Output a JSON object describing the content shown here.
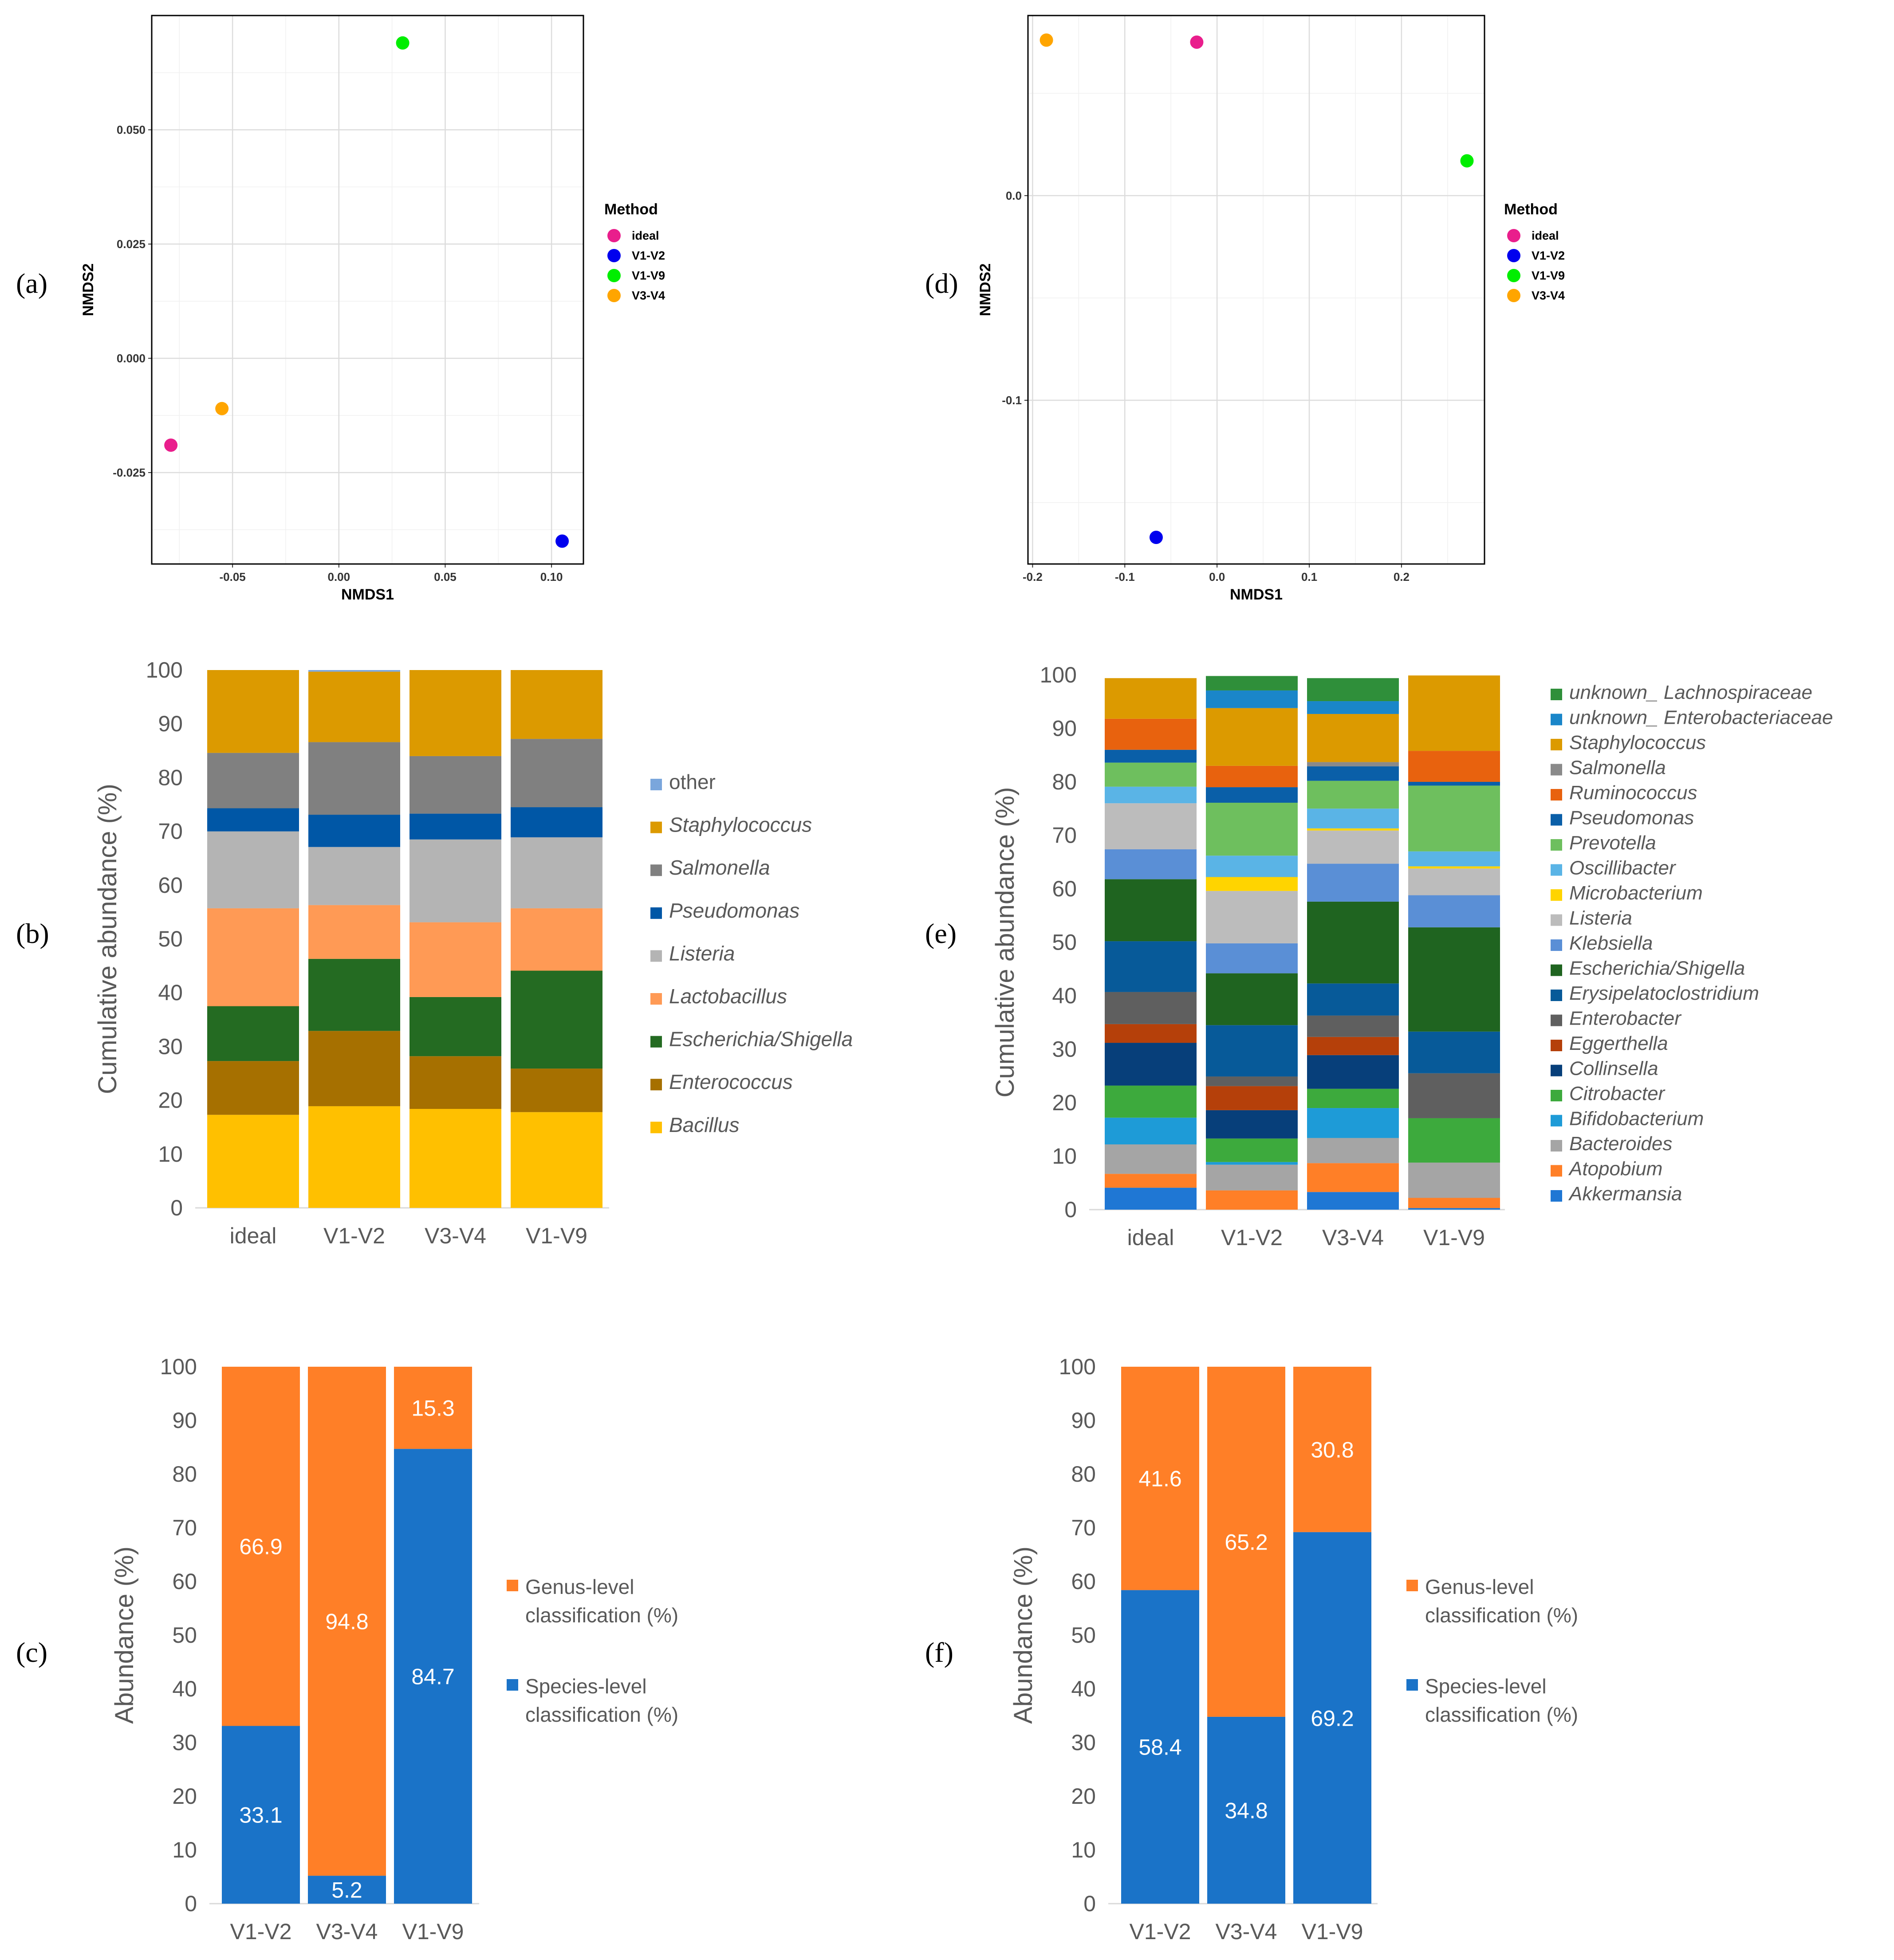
{
  "panel_labels": [
    "(a)",
    "(b)",
    "(c)",
    "(d)",
    "(e)",
    "(f)"
  ],
  "chart_data": [
    {
      "panel": "(a)",
      "type": "scatter",
      "xlabel": "NMDS1",
      "ylabel": "NMDS2",
      "xlim": [
        -0.088,
        0.115
      ],
      "ylim": [
        -0.045,
        0.075
      ],
      "xticks": [
        -0.05,
        0.0,
        0.05,
        0.1
      ],
      "xtick_labels": [
        "-0.05",
        "0.00",
        "0.05",
        "0.10"
      ],
      "yticks": [
        -0.025,
        0.0,
        0.025,
        0.05
      ],
      "ytick_labels": [
        "-0.025",
        "0.000",
        "0.025",
        "0.050"
      ],
      "legend_title": "Method",
      "legend": [
        "ideal",
        "V1-V2",
        "V1-V9",
        "V3-V4"
      ],
      "colors": [
        "#e91e8c",
        "#0000ee",
        "#00ee00",
        "#ffa500"
      ],
      "points": [
        {
          "label": "ideal",
          "x": -0.079,
          "y": -0.019
        },
        {
          "label": "V1-V2",
          "x": 0.105,
          "y": -0.04
        },
        {
          "label": "V1-V9",
          "x": 0.03,
          "y": 0.069
        },
        {
          "label": "V3-V4",
          "x": -0.055,
          "y": -0.011
        }
      ]
    },
    {
      "panel": "(d)",
      "type": "scatter",
      "xlabel": "NMDS1",
      "ylabel": "NMDS2",
      "xlim": [
        -0.205,
        0.29
      ],
      "ylim": [
        -0.18,
        0.088
      ],
      "xticks": [
        -0.2,
        -0.1,
        0.0,
        0.1,
        0.2
      ],
      "xtick_labels": [
        "-0.2",
        "-0.1",
        "0.0",
        "0.1",
        "0.2"
      ],
      "yticks": [
        -0.1,
        0.0
      ],
      "ytick_labels": [
        "-0.1",
        "0.0"
      ],
      "legend_title": "Method",
      "legend": [
        "ideal",
        "V1-V2",
        "V1-V9",
        "V3-V4"
      ],
      "colors": [
        "#e91e8c",
        "#0000ee",
        "#00ee00",
        "#ffa500"
      ],
      "points": [
        {
          "label": "ideal",
          "x": -0.022,
          "y": 0.075
        },
        {
          "label": "V1-V2",
          "x": -0.066,
          "y": -0.167
        },
        {
          "label": "V1-V9",
          "x": 0.271,
          "y": 0.017
        },
        {
          "label": "V3-V4",
          "x": -0.185,
          "y": 0.076
        }
      ]
    },
    {
      "panel": "(b)",
      "type": "bar",
      "stacked": true,
      "ylabel": "Cumulative abundance (%)",
      "ylim": [
        0,
        100
      ],
      "yticks": [
        "0",
        "10",
        "20",
        "30",
        "40",
        "50",
        "60",
        "70",
        "80",
        "90",
        "100"
      ],
      "categories": [
        "ideal",
        "V1-V2",
        "V3-V4",
        "V1-V9"
      ],
      "series": [
        {
          "name": "Bacillus",
          "color": "#ffc000",
          "values": [
            17.3,
            18.9,
            18.4,
            17.8
          ]
        },
        {
          "name": "Enterococcus",
          "color": "#a67000",
          "values": [
            10.0,
            14.0,
            9.8,
            8.1
          ]
        },
        {
          "name": "Escherichia/Shigella",
          "color": "#246b22",
          "values": [
            10.2,
            13.4,
            11.0,
            18.2
          ]
        },
        {
          "name": "Lactobacillus",
          "color": "#ff9a55",
          "values": [
            18.2,
            10.0,
            13.9,
            11.6
          ]
        },
        {
          "name": "Listeria",
          "color": "#b4b4b4",
          "values": [
            14.3,
            10.8,
            15.4,
            13.2
          ]
        },
        {
          "name": "Pseudomonas",
          "color": "#0057a6",
          "values": [
            4.3,
            6.0,
            4.8,
            5.6
          ]
        },
        {
          "name": "Salmonella",
          "color": "#808080",
          "values": [
            10.3,
            13.5,
            10.7,
            12.7
          ]
        },
        {
          "name": "Staphylococcus",
          "color": "#dc9a00",
          "values": [
            15.4,
            13.1,
            16.0,
            12.8
          ]
        },
        {
          "name": "other",
          "color": "#7aa6dc",
          "values": [
            0.0,
            0.3,
            0.0,
            0.0
          ]
        }
      ],
      "legend_order": [
        "other",
        "Staphylococcus",
        "Salmonella",
        "Pseudomonas",
        "Listeria",
        "Lactobacillus",
        "Escherichia/Shigella",
        "Enterococcus",
        "Bacillus"
      ]
    },
    {
      "panel": "(e)",
      "type": "bar",
      "stacked": true,
      "ylabel": "Cumulative abundance (%)",
      "ylim": [
        0,
        100
      ],
      "yticks": [
        "0",
        "10",
        "20",
        "30",
        "40",
        "50",
        "60",
        "70",
        "80",
        "90",
        "100"
      ],
      "categories": [
        "ideal",
        "V1-V2",
        "V3-V4",
        "V1-V9"
      ],
      "series": [
        {
          "name": "Akkermansia",
          "color": "#1f77d4",
          "values": [
            4.1,
            0.0,
            3.3,
            0.3
          ]
        },
        {
          "name": "Atopobium",
          "color": "#ff7f27",
          "values": [
            2.6,
            3.6,
            5.4,
            1.9
          ]
        },
        {
          "name": "Bacteroides",
          "color": "#a5a5a5",
          "values": [
            5.5,
            4.8,
            4.7,
            6.6
          ]
        },
        {
          "name": "Bifidobacterium",
          "color": "#1e9bd7",
          "values": [
            5.0,
            0.5,
            5.6,
            0.0
          ]
        },
        {
          "name": "Citrobacter",
          "color": "#3daa3d",
          "values": [
            6.0,
            4.4,
            3.6,
            8.3
          ]
        },
        {
          "name": "Collinsella",
          "color": "#073f7a",
          "values": [
            8.0,
            5.3,
            6.3,
            0.0
          ]
        },
        {
          "name": "Eggerthella",
          "color": "#b5400a",
          "values": [
            3.5,
            4.5,
            3.4,
            0.0
          ]
        },
        {
          "name": "Enterobacter",
          "color": "#5f5f5f",
          "values": [
            6.0,
            1.8,
            4.0,
            8.4
          ]
        },
        {
          "name": "Erysipelatoclostridium",
          "color": "#075a99",
          "values": [
            9.5,
            9.6,
            6.0,
            7.8
          ]
        },
        {
          "name": "Escherichia/Shigella",
          "color": "#1f6420",
          "values": [
            11.6,
            9.7,
            15.3,
            19.5
          ]
        },
        {
          "name": "Klebsiella",
          "color": "#5a8fd6",
          "values": [
            5.6,
            5.6,
            7.1,
            6.0
          ]
        },
        {
          "name": "Listeria",
          "color": "#bcbcbc",
          "values": [
            8.6,
            9.8,
            6.2,
            5.0
          ]
        },
        {
          "name": "Microbacterium",
          "color": "#ffd400",
          "values": [
            0.0,
            2.6,
            0.4,
            0.4
          ]
        },
        {
          "name": "Oscillibacter",
          "color": "#5ab4e6",
          "values": [
            3.1,
            4.0,
            3.7,
            2.8
          ]
        },
        {
          "name": "Prevotella",
          "color": "#6ebf5e",
          "values": [
            4.5,
            9.9,
            5.2,
            12.3
          ]
        },
        {
          "name": "Pseudomonas",
          "color": "#0a5fa8",
          "values": [
            2.4,
            2.9,
            2.7,
            0.7
          ]
        },
        {
          "name": "Ruminococcus",
          "color": "#e8620e",
          "values": [
            5.8,
            4.0,
            0.0,
            5.8
          ]
        },
        {
          "name": "Salmonella",
          "color": "#8a8a8a",
          "values": [
            0.0,
            0.0,
            0.8,
            0.0
          ]
        },
        {
          "name": "Staphylococcus",
          "color": "#dc9a00",
          "values": [
            7.6,
            10.8,
            9.0,
            14.1
          ]
        },
        {
          "name": "unknown_ Enterobacteriaceae",
          "color": "#1a86c9",
          "values": [
            0.0,
            3.3,
            2.4,
            0.0
          ]
        },
        {
          "name": "unknown_ Lachnospiraceae",
          "color": "#2f8f3a",
          "values": [
            0.0,
            2.7,
            4.3,
            0.0
          ]
        }
      ],
      "legend_order": [
        "unknown_ Lachnospiraceae",
        "unknown_ Enterobacteriaceae",
        "Staphylococcus",
        "Salmonella",
        "Ruminococcus",
        "Pseudomonas",
        "Prevotella",
        "Oscillibacter",
        "Microbacterium",
        "Listeria",
        "Klebsiella",
        "Escherichia/Shigella",
        "Erysipelatoclostridium",
        "Enterobacter",
        "Eggerthella",
        "Collinsella",
        "Citrobacter",
        "Bifidobacterium",
        "Bacteroides",
        "Atopobium",
        "Akkermansia"
      ]
    },
    {
      "panel": "(c)",
      "type": "bar",
      "stacked": true,
      "ylabel": "Abundance (%)",
      "ylim": [
        0,
        100
      ],
      "yticks": [
        "0",
        "10",
        "20",
        "30",
        "40",
        "50",
        "60",
        "70",
        "80",
        "90",
        "100"
      ],
      "categories": [
        "V1-V2",
        "V3-V4",
        "V1-V9"
      ],
      "series": [
        {
          "name": "Species-level classification (%)",
          "color": "#1a73c8",
          "values": [
            33.1,
            5.2,
            84.7
          ],
          "labels": [
            "33.1",
            "5.2",
            "84.7"
          ]
        },
        {
          "name": "Genus-level classification (%)",
          "color": "#ff7f27",
          "values": [
            66.9,
            94.8,
            15.3
          ],
          "labels": [
            "66.9",
            "94.8",
            "15.3"
          ]
        }
      ],
      "legend_lines": [
        [
          "Genus-level",
          "classification (%)"
        ],
        [
          "Species-level",
          "classification (%)"
        ]
      ]
    },
    {
      "panel": "(f)",
      "type": "bar",
      "stacked": true,
      "ylabel": "Abundance (%)",
      "ylim": [
        0,
        100
      ],
      "yticks": [
        "0",
        "10",
        "20",
        "30",
        "40",
        "50",
        "60",
        "70",
        "80",
        "90",
        "100"
      ],
      "categories": [
        "V1-V2",
        "V3-V4",
        "V1-V9"
      ],
      "series": [
        {
          "name": "Species-level classification (%)",
          "color": "#1a73c8",
          "values": [
            58.4,
            34.8,
            69.2
          ],
          "labels": [
            "58.4",
            "34.8",
            "69.2"
          ]
        },
        {
          "name": "Genus-level classification (%)",
          "color": "#ff7f27",
          "values": [
            41.6,
            65.2,
            30.8
          ],
          "labels": [
            "41.6",
            "65.2",
            "30.8"
          ]
        }
      ],
      "legend_lines": [
        [
          "Genus-level",
          "classification (%)"
        ],
        [
          "Species-level",
          "classification (%)"
        ]
      ]
    }
  ]
}
